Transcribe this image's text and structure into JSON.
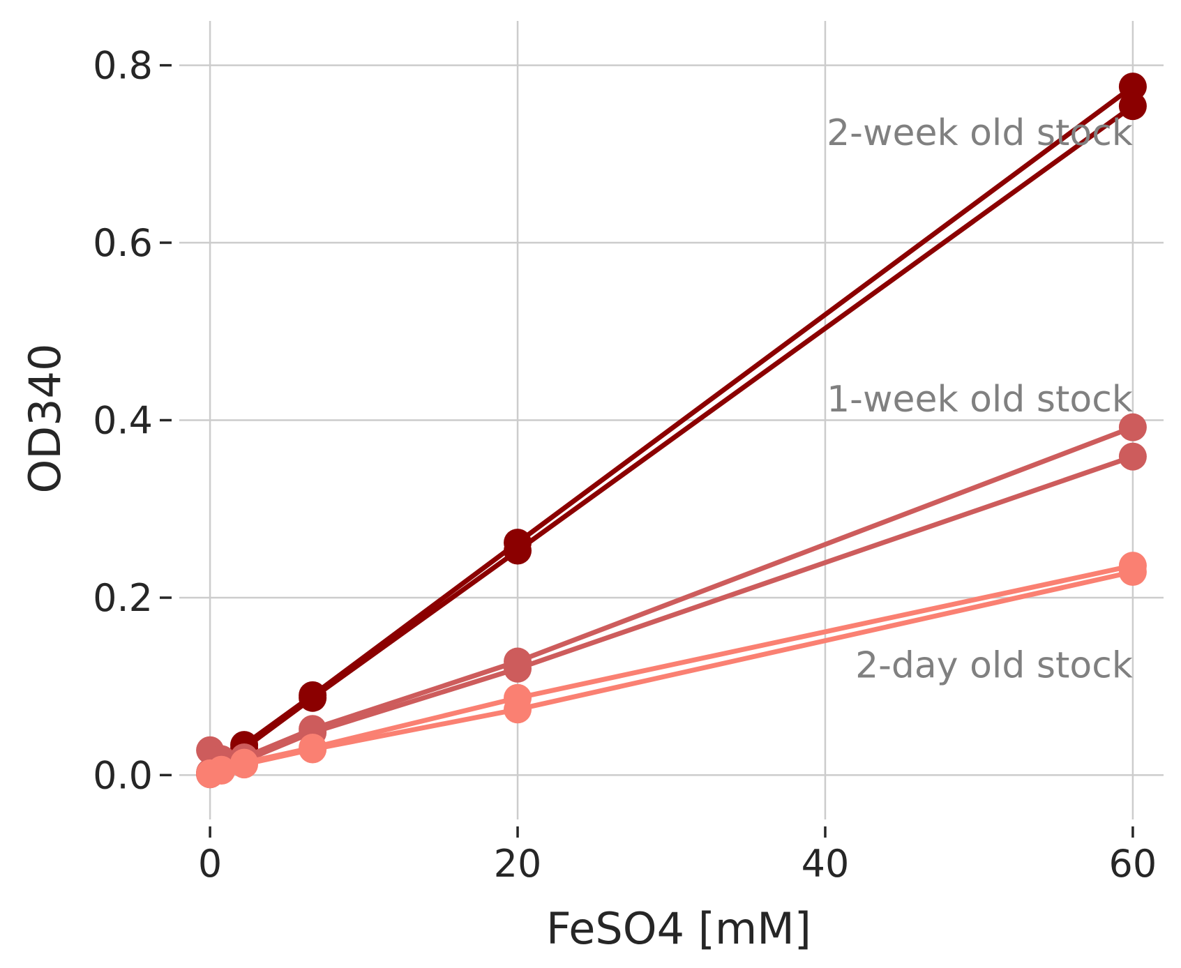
{
  "chart_data": {
    "type": "line",
    "xlabel": "FeSO4 [mM]",
    "ylabel": "OD340",
    "xlim": [
      -2.0,
      62.0
    ],
    "ylim": [
      -0.05,
      0.85
    ],
    "xticks": [
      0,
      20,
      40,
      60
    ],
    "yticks": [
      0.0,
      0.2,
      0.4,
      0.6,
      0.8
    ],
    "xtick_labels": [
      "0",
      "20",
      "40",
      "60"
    ],
    "ytick_labels": [
      "0.0",
      "0.2",
      "0.4",
      "0.6",
      "0.8"
    ],
    "grid": true,
    "x": [
      0,
      0.74,
      2.22,
      6.67,
      20,
      60
    ],
    "series": [
      {
        "values": [
          0.002,
          0.012,
          0.034,
          0.09,
          0.262,
          0.776
        ],
        "color": "#8b0000"
      },
      {
        "values": [
          0.001,
          0.01,
          0.03,
          0.087,
          0.253,
          0.754
        ],
        "color": "#8b0000"
      },
      {
        "values": [
          0.028,
          0.018,
          0.02,
          0.052,
          0.128,
          0.392
        ],
        "color": "#cd5c5c"
      },
      {
        "values": [
          0.003,
          0.008,
          0.016,
          0.048,
          0.12,
          0.359
        ],
        "color": "#cd5c5c"
      },
      {
        "values": [
          0.002,
          0.006,
          0.014,
          0.031,
          0.087,
          0.236
        ],
        "color": "#fa8072"
      },
      {
        "values": [
          0.001,
          0.005,
          0.012,
          0.029,
          0.074,
          0.229
        ],
        "color": "#fa8072"
      }
    ],
    "annotations": [
      {
        "text": "2-week old stock",
        "x": 60,
        "y": 0.71
      },
      {
        "text": "1-week old stock",
        "x": 60,
        "y": 0.41
      },
      {
        "text": "2-day old stock",
        "x": 60,
        "y": 0.11
      }
    ]
  }
}
